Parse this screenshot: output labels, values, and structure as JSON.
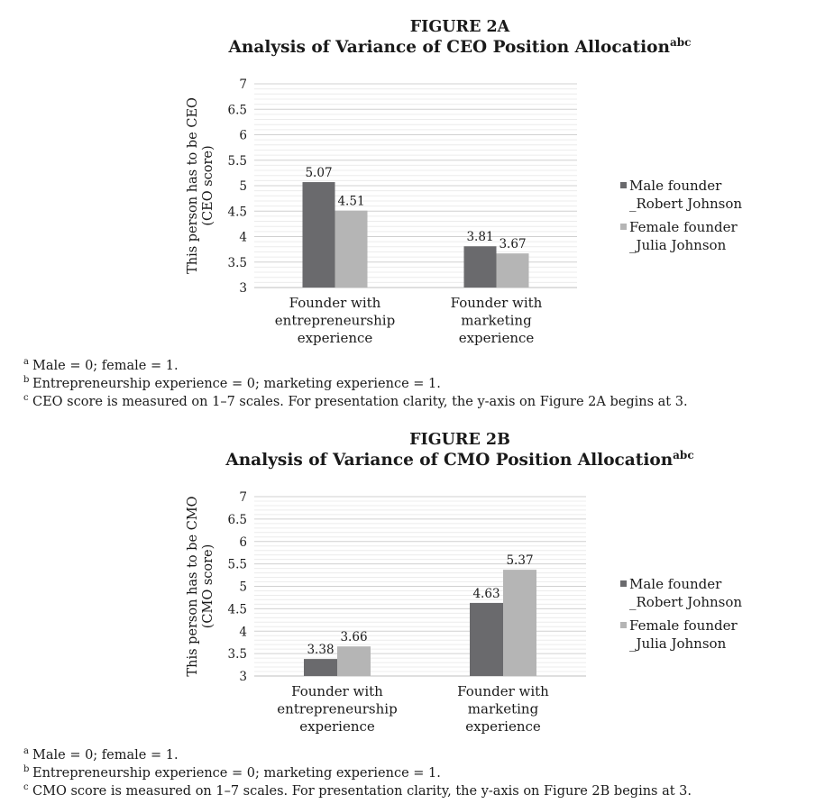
{
  "colors": {
    "male": "#6a6a6d",
    "female": "#b5b5b5",
    "grid": "#d9d9d9",
    "axis": "#bfbfbf"
  },
  "figures": [
    {
      "label": "FIGURE 2A",
      "title": "Analysis of Variance of CEO Position Allocation",
      "title_superscript": "abc",
      "legend": [
        {
          "line1": "Male founder",
          "line2": "_Robert Johnson"
        },
        {
          "line1": "Female founder",
          "line2": "_Julia Johnson"
        }
      ],
      "notes": [
        {
          "mark": "a",
          "text": "Male = 0; female = 1."
        },
        {
          "mark": "b",
          "text": "Entrepreneurship experience = 0; marketing experience = 1."
        },
        {
          "mark": "c",
          "text": "CEO score is measured on 1–7 scales. For presentation clarity, the y-axis on Figure 2A begins at 3."
        }
      ]
    },
    {
      "label": "FIGURE 2B",
      "title": "Analysis of Variance of CMO Position Allocation",
      "title_superscript": "abc",
      "legend": [
        {
          "line1": "Male founder",
          "line2": "_Robert Johnson"
        },
        {
          "line1": "Female founder",
          "line2": "_Julia Johnson"
        }
      ],
      "notes": [
        {
          "mark": "a",
          "text": "Male = 0; female = 1."
        },
        {
          "mark": "b",
          "text": "Entrepreneurship experience = 0; marketing experience = 1."
        },
        {
          "mark": "c",
          "text": "CMO score is measured on 1–7 scales. For presentation clarity, the y-axis on Figure 2B begins at 3."
        }
      ]
    }
  ],
  "chart_data": [
    {
      "type": "bar",
      "title": "Analysis of Variance of CEO Position Allocation",
      "ylabel": [
        "This person has to be CEO",
        "(CEO score)"
      ],
      "xlabel": "",
      "categories": [
        [
          "Founder with",
          "entrepreneurship",
          "experience"
        ],
        [
          "Founder with",
          "marketing",
          "experience"
        ]
      ],
      "series": [
        {
          "name": "Male founder _Robert Johnson",
          "values": [
            5.07,
            3.81
          ],
          "labels": [
            "5.07",
            "3.81"
          ]
        },
        {
          "name": "Female founder _Julia Johnson",
          "values": [
            4.51,
            3.67
          ],
          "labels": [
            "4.51",
            "3.67"
          ]
        }
      ],
      "ylim": [
        3,
        7
      ],
      "yticks": [
        "3",
        "3.5",
        "4",
        "4.5",
        "5",
        "5.5",
        "6",
        "6.5",
        "7"
      ],
      "grid": true,
      "legend_position": "right"
    },
    {
      "type": "bar",
      "title": "Analysis of Variance of CMO Position Allocation",
      "ylabel": [
        "This person has to be CMO",
        "(CMO score)"
      ],
      "xlabel": "",
      "categories": [
        [
          "Founder with",
          "entrepreneurship",
          "experience"
        ],
        [
          "Founder with",
          "marketing",
          "experience"
        ]
      ],
      "series": [
        {
          "name": "Male founder _Robert Johnson",
          "values": [
            3.38,
            4.63
          ],
          "labels": [
            "3.38",
            "4.63"
          ]
        },
        {
          "name": "Female founder _Julia Johnson",
          "values": [
            3.66,
            5.37
          ],
          "labels": [
            "3.66",
            "5.37"
          ]
        }
      ],
      "ylim": [
        3,
        7
      ],
      "yticks": [
        "3",
        "3.5",
        "4",
        "4.5",
        "5",
        "5.5",
        "6",
        "6.5",
        "7"
      ],
      "grid": true,
      "legend_position": "right"
    }
  ]
}
